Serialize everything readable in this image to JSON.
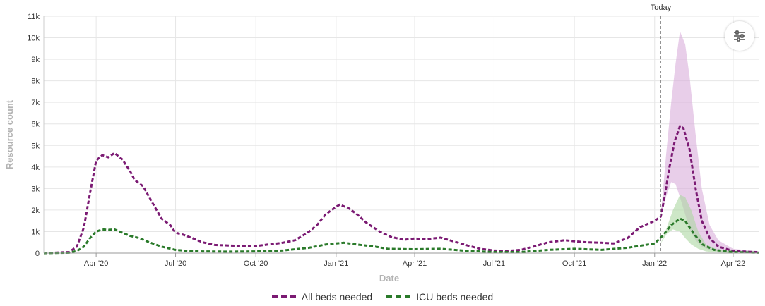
{
  "chart_data": {
    "type": "line",
    "title": "",
    "xlabel": "Date",
    "ylabel": "Resource count",
    "x_range": [
      "2020-02-01",
      "2022-05-01"
    ],
    "ylim": [
      0,
      11000
    ],
    "y_ticks": [
      {
        "value": 0,
        "label": "0"
      },
      {
        "value": 1000,
        "label": "1k"
      },
      {
        "value": 2000,
        "label": "2k"
      },
      {
        "value": 3000,
        "label": "3k"
      },
      {
        "value": 4000,
        "label": "4k"
      },
      {
        "value": 5000,
        "label": "5k"
      },
      {
        "value": 6000,
        "label": "6k"
      },
      {
        "value": 7000,
        "label": "7k"
      },
      {
        "value": 8000,
        "label": "8k"
      },
      {
        "value": 9000,
        "label": "9k"
      },
      {
        "value": 10000,
        "label": "10k"
      },
      {
        "value": 11000,
        "label": "11k"
      }
    ],
    "x_ticks": [
      {
        "date": "2020-04-01",
        "label": "Apr '20"
      },
      {
        "date": "2020-07-01",
        "label": "Jul '20"
      },
      {
        "date": "2020-10-01",
        "label": "Oct '20"
      },
      {
        "date": "2021-01-01",
        "label": "Jan '21"
      },
      {
        "date": "2021-04-01",
        "label": "Apr '21"
      },
      {
        "date": "2021-07-01",
        "label": "Jul '21"
      },
      {
        "date": "2021-10-01",
        "label": "Oct '21"
      },
      {
        "date": "2022-01-01",
        "label": "Jan '22"
      },
      {
        "date": "2022-04-01",
        "label": "Apr '22"
      }
    ],
    "today": {
      "date": "2022-01-08",
      "label": "Today"
    },
    "grid": true,
    "legend_position": "bottom",
    "series": [
      {
        "name": "All beds needed",
        "color": "#7b1a73",
        "style": "dashed",
        "points": [
          [
            "2020-02-01",
            0
          ],
          [
            "2020-03-01",
            50
          ],
          [
            "2020-03-10",
            300
          ],
          [
            "2020-03-18",
            1200
          ],
          [
            "2020-03-25",
            2800
          ],
          [
            "2020-04-01",
            4300
          ],
          [
            "2020-04-08",
            4550
          ],
          [
            "2020-04-15",
            4450
          ],
          [
            "2020-04-22",
            4650
          ],
          [
            "2020-05-01",
            4350
          ],
          [
            "2020-05-10",
            3800
          ],
          [
            "2020-05-15",
            3400
          ],
          [
            "2020-05-25",
            3100
          ],
          [
            "2020-06-05",
            2300
          ],
          [
            "2020-06-15",
            1600
          ],
          [
            "2020-06-25",
            1300
          ],
          [
            "2020-07-01",
            950
          ],
          [
            "2020-07-10",
            850
          ],
          [
            "2020-07-20",
            700
          ],
          [
            "2020-08-01",
            500
          ],
          [
            "2020-08-15",
            380
          ],
          [
            "2020-09-01",
            350
          ],
          [
            "2020-09-15",
            330
          ],
          [
            "2020-10-01",
            330
          ],
          [
            "2020-10-15",
            400
          ],
          [
            "2020-11-01",
            480
          ],
          [
            "2020-11-15",
            600
          ],
          [
            "2020-12-01",
            1000
          ],
          [
            "2020-12-10",
            1300
          ],
          [
            "2020-12-20",
            1800
          ],
          [
            "2021-01-01",
            2150
          ],
          [
            "2021-01-05",
            2250
          ],
          [
            "2021-01-15",
            2100
          ],
          [
            "2021-01-25",
            1800
          ],
          [
            "2021-02-05",
            1400
          ],
          [
            "2021-02-20",
            1000
          ],
          [
            "2021-03-05",
            750
          ],
          [
            "2021-03-20",
            620
          ],
          [
            "2021-04-01",
            680
          ],
          [
            "2021-04-15",
            650
          ],
          [
            "2021-05-01",
            720
          ],
          [
            "2021-05-15",
            550
          ],
          [
            "2021-06-01",
            350
          ],
          [
            "2021-06-15",
            200
          ],
          [
            "2021-07-01",
            120
          ],
          [
            "2021-07-15",
            100
          ],
          [
            "2021-08-01",
            150
          ],
          [
            "2021-08-15",
            300
          ],
          [
            "2021-09-01",
            500
          ],
          [
            "2021-09-20",
            600
          ],
          [
            "2021-10-01",
            550
          ],
          [
            "2021-10-15",
            500
          ],
          [
            "2021-11-01",
            480
          ],
          [
            "2021-11-15",
            450
          ],
          [
            "2021-12-01",
            700
          ],
          [
            "2021-12-15",
            1200
          ],
          [
            "2022-01-01",
            1500
          ],
          [
            "2022-01-08",
            1700
          ],
          [
            "2022-01-12",
            2500
          ],
          [
            "2022-01-18",
            4000
          ],
          [
            "2022-01-24",
            5200
          ],
          [
            "2022-01-30",
            5900
          ],
          [
            "2022-02-03",
            5800
          ],
          [
            "2022-02-10",
            4800
          ],
          [
            "2022-02-17",
            3000
          ],
          [
            "2022-02-24",
            1500
          ],
          [
            "2022-03-05",
            700
          ],
          [
            "2022-03-15",
            300
          ],
          [
            "2022-04-01",
            100
          ],
          [
            "2022-04-20",
            60
          ],
          [
            "2022-05-01",
            50
          ]
        ]
      },
      {
        "name": "ICU beds needed",
        "color": "#2a7a2a",
        "style": "dashed",
        "points": [
          [
            "2020-02-01",
            0
          ],
          [
            "2020-03-01",
            20
          ],
          [
            "2020-03-10",
            100
          ],
          [
            "2020-03-18",
            300
          ],
          [
            "2020-03-25",
            700
          ],
          [
            "2020-04-01",
            1000
          ],
          [
            "2020-04-08",
            1100
          ],
          [
            "2020-04-15",
            1080
          ],
          [
            "2020-04-22",
            1100
          ],
          [
            "2020-05-01",
            950
          ],
          [
            "2020-05-10",
            800
          ],
          [
            "2020-05-20",
            700
          ],
          [
            "2020-06-01",
            500
          ],
          [
            "2020-06-15",
            300
          ],
          [
            "2020-07-01",
            150
          ],
          [
            "2020-07-15",
            100
          ],
          [
            "2020-08-01",
            80
          ],
          [
            "2020-09-01",
            70
          ],
          [
            "2020-10-01",
            80
          ],
          [
            "2020-11-01",
            120
          ],
          [
            "2020-12-01",
            250
          ],
          [
            "2020-12-20",
            400
          ],
          [
            "2021-01-01",
            450
          ],
          [
            "2021-01-10",
            480
          ],
          [
            "2021-01-25",
            400
          ],
          [
            "2021-02-15",
            300
          ],
          [
            "2021-03-01",
            200
          ],
          [
            "2021-04-01",
            180
          ],
          [
            "2021-05-01",
            200
          ],
          [
            "2021-06-01",
            100
          ],
          [
            "2021-07-01",
            50
          ],
          [
            "2021-08-01",
            50
          ],
          [
            "2021-09-01",
            150
          ],
          [
            "2021-10-01",
            200
          ],
          [
            "2021-11-01",
            150
          ],
          [
            "2021-12-01",
            250
          ],
          [
            "2022-01-01",
            450
          ],
          [
            "2022-01-10",
            800
          ],
          [
            "2022-01-20",
            1300
          ],
          [
            "2022-01-30",
            1600
          ],
          [
            "2022-02-05",
            1500
          ],
          [
            "2022-02-15",
            900
          ],
          [
            "2022-02-25",
            400
          ],
          [
            "2022-03-10",
            150
          ],
          [
            "2022-04-01",
            50
          ],
          [
            "2022-05-01",
            20
          ]
        ]
      }
    ],
    "uncertainty_bands": [
      {
        "series": "All beds needed",
        "color": "#d9aedb",
        "points": [
          [
            "2022-01-08",
            1700,
            1700
          ],
          [
            "2022-01-14",
            2600,
            4500
          ],
          [
            "2022-01-20",
            3300,
            7000
          ],
          [
            "2022-01-25",
            3200,
            8800
          ],
          [
            "2022-01-30",
            2600,
            10300
          ],
          [
            "2022-02-05",
            1800,
            9700
          ],
          [
            "2022-02-10",
            1100,
            8200
          ],
          [
            "2022-02-17",
            600,
            5500
          ],
          [
            "2022-02-24",
            300,
            3000
          ],
          [
            "2022-03-05",
            150,
            1300
          ],
          [
            "2022-03-15",
            80,
            600
          ],
          [
            "2022-04-01",
            40,
            200
          ],
          [
            "2022-05-01",
            20,
            80
          ]
        ]
      },
      {
        "series": "ICU beds needed",
        "color": "#acd7a2",
        "points": [
          [
            "2022-01-08",
            450,
            450
          ],
          [
            "2022-01-15",
            900,
            1200
          ],
          [
            "2022-01-22",
            1100,
            2000
          ],
          [
            "2022-01-30",
            1000,
            2700
          ],
          [
            "2022-02-05",
            700,
            2600
          ],
          [
            "2022-02-12",
            400,
            2000
          ],
          [
            "2022-02-20",
            200,
            1000
          ],
          [
            "2022-03-01",
            80,
            400
          ],
          [
            "2022-03-15",
            30,
            150
          ],
          [
            "2022-04-01",
            10,
            60
          ],
          [
            "2022-05-01",
            5,
            20
          ]
        ]
      }
    ]
  },
  "legend": {
    "items": [
      {
        "label": "All beds needed",
        "color": "#7b1a73"
      },
      {
        "label": "ICU beds needed",
        "color": "#2a7a2a"
      }
    ]
  },
  "controls": {
    "settings_icon": "sliders-icon"
  }
}
